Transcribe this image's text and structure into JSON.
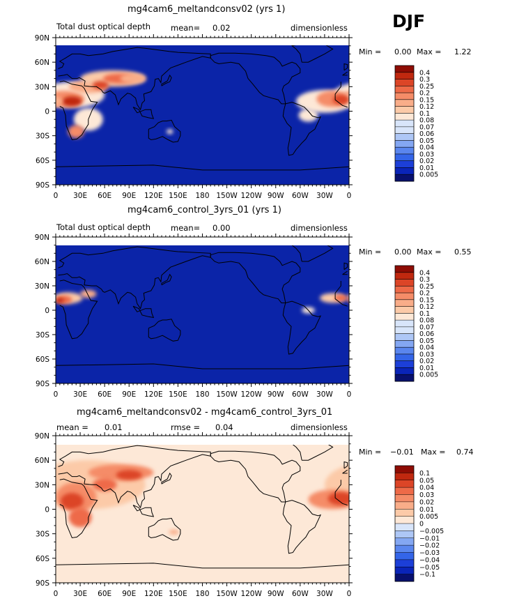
{
  "season": "DJF",
  "colors": {
    "ocean_background": "#0b24a8",
    "diff_background": "#fde8d7",
    "dust_palette": [
      "#08106e",
      "#0a24b8",
      "#1c3fd8",
      "#3465e8",
      "#5a86ee",
      "#84a7f2",
      "#aec7f6",
      "#d8e5fa",
      "#fde8d7",
      "#fccaa8",
      "#f9ad89",
      "#f58c68",
      "#ee6a48",
      "#dc4527",
      "#c0280f",
      "#8e0c04"
    ],
    "diff_palette": [
      "#08106e",
      "#0a24b8",
      "#1c3fd8",
      "#3465e8",
      "#5a86ee",
      "#84a7f2",
      "#aec7f6",
      "#d8e5fa",
      "#fde8d7",
      "#fccaa8",
      "#f9ad89",
      "#f58c68",
      "#ee6a48",
      "#dc4527",
      "#c0280f",
      "#8e0c04"
    ]
  },
  "panels": [
    {
      "title": "mg4cam6_meltandconsv02 (yrs 1)",
      "left_label": "Total dust optical depth",
      "mean_label": "mean=",
      "mean_value": "0.02",
      "rmse_label": "",
      "rmse_value": "",
      "units": "dimensionless",
      "min_label": "Min =",
      "min_value": "0.00",
      "max_label": "Max =",
      "max_value": "1.22",
      "colorbar": "dust"
    },
    {
      "title": "mg4cam6_control_3yrs_01 (yrs 1)",
      "left_label": "Total dust optical depth",
      "mean_label": "mean=",
      "mean_value": "0.00",
      "rmse_label": "",
      "rmse_value": "",
      "units": "dimensionless",
      "min_label": "Min =",
      "min_value": "0.00",
      "max_label": "Max =",
      "max_value": "0.55",
      "colorbar": "dust"
    },
    {
      "title": "mg4cam6_meltandconsv02 - mg4cam6_control_3yrs_01",
      "left_label": "mean =",
      "mean_label": "",
      "mean_value": "0.01",
      "rmse_label": "rmse =",
      "rmse_value": "0.04",
      "units": "dimensionless",
      "min_label": "Min =",
      "min_value": "−0.01",
      "max_label": "Max =",
      "max_value": "0.74",
      "colorbar": "diff"
    }
  ],
  "chart_data": [
    {
      "type": "heatmap",
      "title": "mg4cam6_meltandconsv02 (yrs 1)",
      "x_ticks": [
        "0",
        "30E",
        "60E",
        "90E",
        "120E",
        "150E",
        "180",
        "150W",
        "120W",
        "90W",
        "60W",
        "30W",
        "0"
      ],
      "y_ticks": [
        "90N",
        "60N",
        "30N",
        "0",
        "30S",
        "60S",
        "90S"
      ],
      "xlim": [
        0,
        360
      ],
      "ylim": [
        -90,
        90
      ],
      "colorbar_levels": [
        "0.4",
        "0.3",
        "0.25",
        "0.2",
        "0.15",
        "0.12",
        "0.1",
        "0.08",
        "0.07",
        "0.06",
        "0.05",
        "0.04",
        "0.03",
        "0.02",
        "0.01",
        "0.005"
      ],
      "mean": 0.02,
      "min": 0.0,
      "max": 1.22
    },
    {
      "type": "heatmap",
      "title": "mg4cam6_control_3yrs_01 (yrs 1)",
      "x_ticks": [
        "0",
        "30E",
        "60E",
        "90E",
        "120E",
        "150E",
        "180",
        "150W",
        "120W",
        "90W",
        "60W",
        "30W",
        "0"
      ],
      "y_ticks": [
        "90N",
        "60N",
        "30N",
        "0",
        "30S",
        "60S",
        "90S"
      ],
      "xlim": [
        0,
        360
      ],
      "ylim": [
        -90,
        90
      ],
      "colorbar_levels": [
        "0.4",
        "0.3",
        "0.25",
        "0.2",
        "0.15",
        "0.12",
        "0.1",
        "0.08",
        "0.07",
        "0.06",
        "0.05",
        "0.04",
        "0.03",
        "0.02",
        "0.01",
        "0.005"
      ],
      "mean": 0.0,
      "min": 0.0,
      "max": 0.55
    },
    {
      "type": "heatmap",
      "title": "mg4cam6_meltandconsv02 - mg4cam6_control_3yrs_01",
      "x_ticks": [
        "0",
        "30E",
        "60E",
        "90E",
        "120E",
        "150E",
        "180",
        "150W",
        "120W",
        "90W",
        "60W",
        "30W",
        "0"
      ],
      "y_ticks": [
        "90N",
        "60N",
        "30N",
        "0",
        "30S",
        "60S",
        "90S"
      ],
      "xlim": [
        0,
        360
      ],
      "ylim": [
        -90,
        90
      ],
      "colorbar_levels": [
        "0.1",
        "0.05",
        "0.04",
        "0.03",
        "0.02",
        "0.01",
        "0.005",
        "0",
        "−0.005",
        "−0.01",
        "−0.02",
        "−0.03",
        "−0.04",
        "−0.05",
        "−0.1"
      ],
      "mean": 0.01,
      "rmse": 0.04,
      "min": -0.01,
      "max": 0.74
    }
  ]
}
